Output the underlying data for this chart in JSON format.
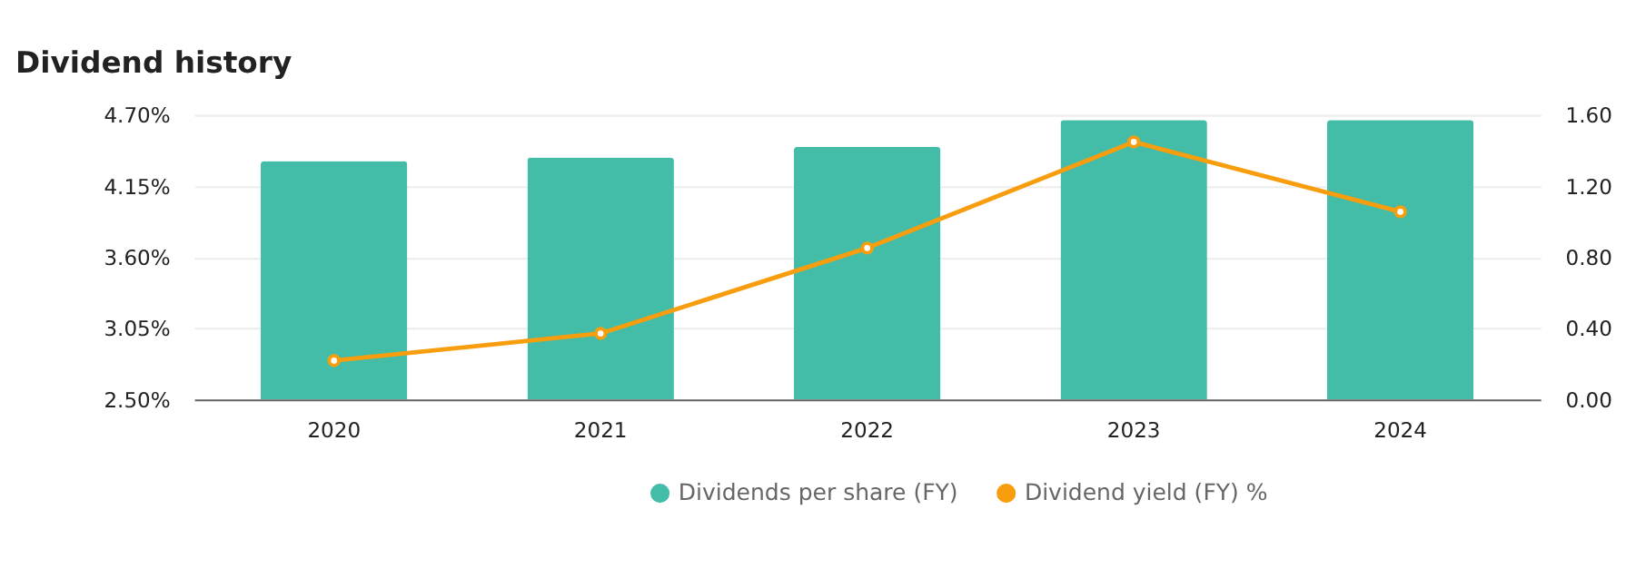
{
  "chart_data": {
    "type": "bar",
    "title": "Dividend history",
    "categories": [
      "2020",
      "2021",
      "2022",
      "2023",
      "2024"
    ],
    "series": [
      {
        "name": "Dividends per share (FY)",
        "axis": "y2",
        "color": "#43bda7",
        "values": [
          1.34,
          1.36,
          1.42,
          1.57,
          1.57
        ]
      },
      {
        "name": "Dividend yield (FY) %",
        "type": "line",
        "color": "#f89d0e",
        "marker": "circle",
        "line_style": "solid",
        "values": [
          2.8,
          3.01,
          3.67,
          4.49,
          3.95
        ]
      }
    ],
    "ylim": [
      2.5,
      4.7
    ],
    "yticks": [
      {
        "value": 2.5,
        "label": "2.50%"
      },
      {
        "value": 3.05,
        "label": "3.05%"
      },
      {
        "value": 3.6,
        "label": "3.60%"
      },
      {
        "value": 4.15,
        "label": "4.15%"
      },
      {
        "value": 4.7,
        "label": "4.70%"
      }
    ],
    "y2lim": [
      0,
      1.6
    ],
    "y2ticks": [
      {
        "value": 0,
        "label": "0.00"
      },
      {
        "value": 0.4,
        "label": "0.40"
      },
      {
        "value": 0.8,
        "label": "0.80"
      },
      {
        "value": 1.2,
        "label": "1.20"
      },
      {
        "value": 1.6,
        "label": "1.60"
      }
    ],
    "grid": "y",
    "legend": "bottom"
  }
}
